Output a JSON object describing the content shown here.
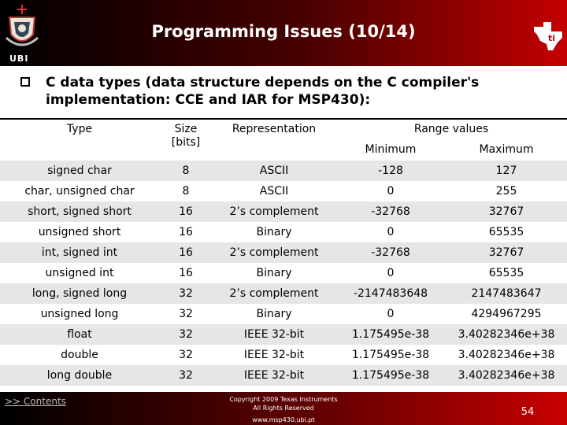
{
  "header": {
    "title": "Programming Issues (10/14)",
    "org_label": "UBI"
  },
  "subtitle": "C data types (data structure depends on the C compiler's implementation: CCE and IAR for MSP430):",
  "table": {
    "headers": {
      "type": "Type",
      "size": "Size\n[bits]",
      "representation": "Representation",
      "range": "Range values",
      "minimum": "Minimum",
      "maximum": "Maximum"
    },
    "rows": [
      {
        "type": "signed char",
        "size": "8",
        "rep": "ASCII",
        "min": "-128",
        "max": "127"
      },
      {
        "type": "char, unsigned char",
        "size": "8",
        "rep": "ASCII",
        "min": "0",
        "max": "255"
      },
      {
        "type": "short, signed short",
        "size": "16",
        "rep": "2’s complement",
        "min": "-32768",
        "max": "32767"
      },
      {
        "type": "unsigned short",
        "size": "16",
        "rep": "Binary",
        "min": "0",
        "max": "65535"
      },
      {
        "type": "int, signed int",
        "size": "16",
        "rep": "2’s complement",
        "min": "-32768",
        "max": "32767"
      },
      {
        "type": "unsigned int",
        "size": "16",
        "rep": "Binary",
        "min": "0",
        "max": "65535"
      },
      {
        "type": "long, signed long",
        "size": "32",
        "rep": "2’s complement",
        "min": "-2147483648",
        "max": "2147483647"
      },
      {
        "type": "unsigned long",
        "size": "32",
        "rep": "Binary",
        "min": "0",
        "max": "4294967295"
      },
      {
        "type": "float",
        "size": "32",
        "rep": "IEEE 32-bit",
        "min": "1.175495e-38",
        "max": "3.40282346e+38"
      },
      {
        "type": "double",
        "size": "32",
        "rep": "IEEE 32-bit",
        "min": "1.175495e-38",
        "max": "3.40282346e+38"
      },
      {
        "type": "long double",
        "size": "32",
        "rep": "IEEE 32-bit",
        "min": "1.175495e-38",
        "max": "3.40282346e+38"
      }
    ]
  },
  "footer": {
    "contents_link": ">> Contents",
    "copyright_line1": "Copyright  2009 Texas Instruments",
    "copyright_line2": "All Rights Reserved",
    "url": "www.msp430.ubi.pt",
    "page_number": "54"
  },
  "icons": {
    "crest": "university-crest-icon",
    "logo": "ti-logo-icon",
    "bullet": "checkbox-bullet-icon"
  },
  "colors": {
    "header_dark": "#000000",
    "header_red": "#c40000",
    "row_shade": "#e6e6e6"
  }
}
